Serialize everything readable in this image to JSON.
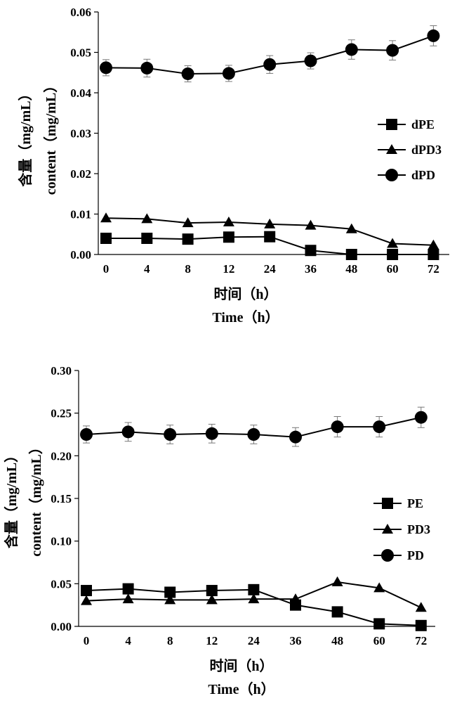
{
  "chart_data": [
    {
      "type": "line",
      "categories": [
        "0",
        "4",
        "8",
        "12",
        "24",
        "36",
        "48",
        "60",
        "72"
      ],
      "ylim": [
        0,
        0.06
      ],
      "yticks": [
        "0.00",
        "0.01",
        "0.02",
        "0.03",
        "0.04",
        "0.05",
        "0.06"
      ],
      "ylabel_cn": "含量（mg/mL）",
      "ylabel_en": "content（mg/mL）",
      "xlabel_cn": "时间（h）",
      "xlabel_en": "Time（h）",
      "grid": false,
      "legend_position": "right",
      "series": [
        {
          "name": "dPE",
          "marker": "square",
          "values": [
            0.004,
            0.004,
            0.0038,
            0.0043,
            0.0044,
            0.001,
            0.0,
            0.0,
            0.0
          ]
        },
        {
          "name": "dPD3",
          "marker": "triangle",
          "values": [
            0.009,
            0.0088,
            0.0078,
            0.008,
            0.0075,
            0.0072,
            0.0063,
            0.0027,
            0.0023
          ]
        },
        {
          "name": "dPD",
          "marker": "circle",
          "values": [
            0.0462,
            0.0461,
            0.0447,
            0.0448,
            0.047,
            0.0479,
            0.0507,
            0.0505,
            0.0541
          ],
          "errors": [
            0.002,
            0.0022,
            0.002,
            0.002,
            0.0022,
            0.002,
            0.0024,
            0.0024,
            0.0025
          ]
        }
      ]
    },
    {
      "type": "line",
      "categories": [
        "0",
        "4",
        "8",
        "12",
        "24",
        "36",
        "48",
        "60",
        "72"
      ],
      "ylim": [
        0,
        0.3
      ],
      "yticks": [
        "0.00",
        "0.05",
        "0.10",
        "0.15",
        "0.20",
        "0.25",
        "0.30"
      ],
      "ylabel_cn": "含量（mg/mL）",
      "ylabel_en": "content（mg/mL）",
      "xlabel_cn": "时间（h）",
      "xlabel_en": "Time（h）",
      "grid": false,
      "legend_position": "right",
      "series": [
        {
          "name": "PE",
          "marker": "square",
          "values": [
            0.042,
            0.044,
            0.04,
            0.042,
            0.043,
            0.025,
            0.017,
            0.003,
            0.001
          ]
        },
        {
          "name": "PD3",
          "marker": "triangle",
          "values": [
            0.03,
            0.032,
            0.031,
            0.031,
            0.032,
            0.032,
            0.052,
            0.045,
            0.022
          ]
        },
        {
          "name": "PD",
          "marker": "circle",
          "values": [
            0.225,
            0.228,
            0.225,
            0.226,
            0.225,
            0.222,
            0.234,
            0.234,
            0.245
          ],
          "errors": [
            0.01,
            0.011,
            0.011,
            0.011,
            0.011,
            0.011,
            0.012,
            0.012,
            0.012
          ]
        }
      ]
    }
  ]
}
